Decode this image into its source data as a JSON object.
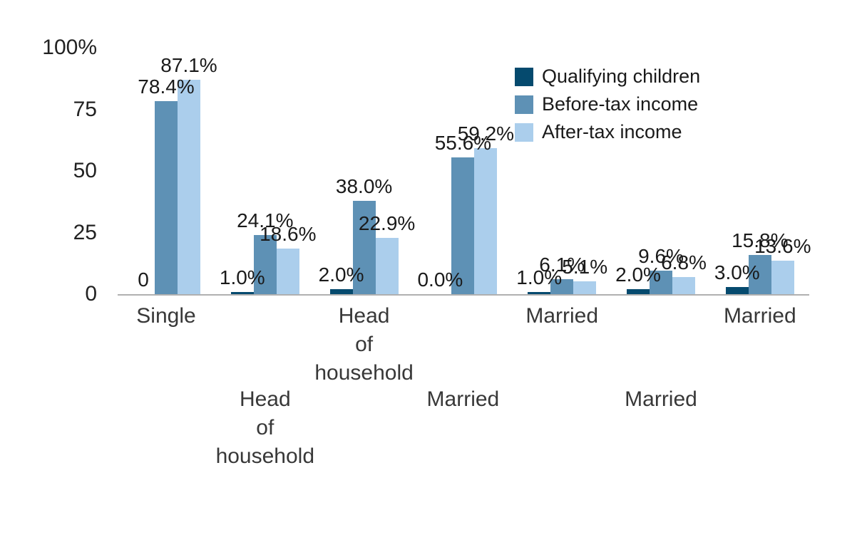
{
  "chart_data": {
    "type": "bar",
    "title": "",
    "categories": [
      "Single",
      "Head of household",
      "Head of household",
      "Married",
      "Married",
      "Married",
      "Married"
    ],
    "series": [
      {
        "name": "Qualifying children",
        "color": "#054a6e",
        "values": [
          0,
          1.0,
          2.0,
          0.0,
          1.0,
          2.0,
          3.0
        ],
        "labels": [
          "0",
          "1.0%",
          "2.0%",
          "0.0%",
          "1.0%",
          "2.0%",
          "3.0%"
        ]
      },
      {
        "name": "Before-tax income",
        "color": "#5e91b5",
        "values": [
          78.4,
          24.1,
          38.0,
          55.6,
          6.1,
          9.6,
          15.8
        ],
        "labels": [
          "78.4%",
          "24.1%",
          "38.0%",
          "55.6%",
          "6.1%",
          "9.6%",
          "15.8%"
        ]
      },
      {
        "name": "After-tax income",
        "color": "#abceec",
        "values": [
          87.1,
          18.6,
          22.9,
          59.2,
          5.1,
          6.8,
          13.6
        ],
        "labels": [
          "87.1%",
          "18.6%",
          "22.9%",
          "59.2%",
          "5.1%",
          "6.8%",
          "13.6%"
        ]
      }
    ],
    "y_axis": {
      "range": [
        0,
        100
      ],
      "ticks": [
        {
          "value": 0,
          "label": "0"
        },
        {
          "value": 25,
          "label": "25"
        },
        {
          "value": 50,
          "label": "50"
        },
        {
          "value": 75,
          "label": "75"
        },
        {
          "value": 100,
          "label": "100%"
        }
      ]
    },
    "x_axis": {
      "stagger_labels": true,
      "wrap_each_word": true
    },
    "legend": {
      "position": "top-right"
    },
    "grid": "off",
    "axis_line_color": "#b0b0b0"
  }
}
